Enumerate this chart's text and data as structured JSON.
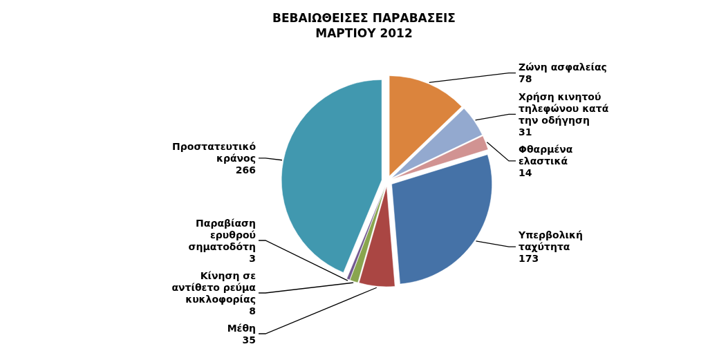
{
  "chart_data": {
    "type": "pie",
    "title": "ΒΕΒΑΙΩΘΕΙΣΕΣ ΠΑΡΑΒΑΣΕΙΣ",
    "subtitle": "ΜΑΡΤΙΟΥ 2012",
    "categories": [
      "Ζώνη ασφαλείας",
      "Χρήση κινητού τηλεφώνου κατά την οδήγηση",
      "Φθαρμένα ελαστικά",
      "Υπερβολική ταχύτητα",
      "Μέθη",
      "Κίνηση σε αντίθετο ρεύμα κυκλοφορίας",
      "Παραβίαση ερυθρού σηματοδότη",
      "Προστατευτικό κράνος"
    ],
    "values": [
      78,
      31,
      14,
      173,
      35,
      8,
      3,
      266
    ],
    "colors": [
      "#db843d",
      "#93a9cf",
      "#d19392",
      "#4572a7",
      "#aa4643",
      "#89a54e",
      "#71588f",
      "#4198af"
    ],
    "data_labels": true
  }
}
